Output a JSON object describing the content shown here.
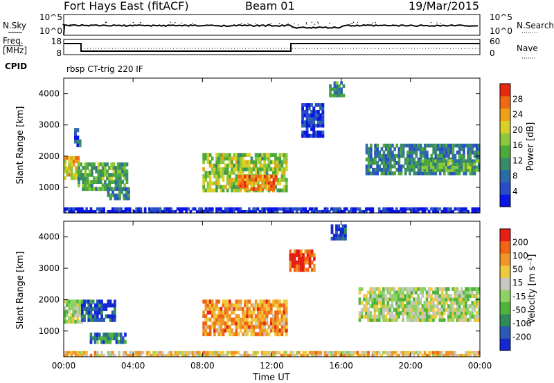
{
  "header": {
    "station": "Fort Hays East (fitACF)",
    "beam": "Beam 01",
    "date": "19/Mar/2015"
  },
  "top_panels": {
    "nsky_label": "N.Sky",
    "nsearch_label": "N.Search",
    "nsky_ticks": [
      "10^5",
      "10^0"
    ],
    "nsearch_ticks": [
      "10^5",
      "10^0"
    ],
    "freq_label_1": "Freq.",
    "freq_label_2": "[MHz]",
    "freq_ticks": [
      "18",
      "8"
    ],
    "nave_label": "Nave",
    "nave_ticks": [
      "60",
      "0"
    ],
    "cpid_label": "CPID",
    "cpid_text": "rbsp CT-trig 220 IF"
  },
  "chart_data": [
    {
      "type": "heatmap",
      "name": "power",
      "ylabel": "Slant Range [km]",
      "y_ticks": [
        "1000",
        "2000",
        "3000",
        "4000"
      ],
      "y_tick_values": [
        1000,
        2000,
        3000,
        4000
      ],
      "ylim": [
        180,
        4500
      ],
      "xlim_hours": [
        0,
        24
      ],
      "colorbar": {
        "label": "Power [dB]",
        "ticks": [
          "4",
          "8",
          "12",
          "16",
          "20",
          "24",
          "28"
        ],
        "range": [
          0,
          32
        ],
        "colors": [
          "#0a14e6",
          "#2a4cc8",
          "#2d6aa8",
          "#3a8a6a",
          "#4caa3a",
          "#8cc83c",
          "#d8d028",
          "#f0a018",
          "#f06a14",
          "#e62a10"
        ]
      },
      "regions": [
        {
          "t0": 0.0,
          "t1": 0.9,
          "r0": 1250,
          "r1": 2000,
          "level": 0.65
        },
        {
          "t0": 0.6,
          "t1": 1.0,
          "r0": 2300,
          "r1": 2900,
          "level": 0.2
        },
        {
          "t0": 0.8,
          "t1": 3.7,
          "r0": 900,
          "r1": 1800,
          "level": 0.45
        },
        {
          "t0": 2.5,
          "t1": 3.8,
          "r0": 600,
          "r1": 1000,
          "level": 0.3
        },
        {
          "t0": 8.0,
          "t1": 12.9,
          "r0": 850,
          "r1": 2100,
          "level": 0.55
        },
        {
          "t0": 10.0,
          "t1": 12.3,
          "r0": 900,
          "r1": 1400,
          "level": 0.85
        },
        {
          "t0": 13.7,
          "t1": 15.0,
          "r0": 2600,
          "r1": 3700,
          "level": 0.1
        },
        {
          "t0": 15.3,
          "t1": 16.2,
          "r0": 3900,
          "r1": 4400,
          "level": 0.35
        },
        {
          "t0": 17.4,
          "t1": 24.0,
          "r0": 1400,
          "r1": 2400,
          "level": 0.3
        },
        {
          "t0": 20.5,
          "t1": 24.0,
          "r0": 1500,
          "r1": 1900,
          "level": 0.45
        },
        {
          "t0": 0.0,
          "t1": 24.0,
          "r0": 180,
          "r1": 360,
          "level": 0.05
        }
      ]
    },
    {
      "type": "heatmap",
      "name": "velocity",
      "ylabel": "Slant Range [km]",
      "y_ticks": [
        "1000",
        "2000",
        "3000",
        "4000"
      ],
      "y_tick_values": [
        1000,
        2000,
        3000,
        4000
      ],
      "ylim": [
        180,
        4500
      ],
      "xlim_hours": [
        0,
        24
      ],
      "xlabel": "Time UT",
      "x_ticks": [
        "00:00",
        "04:00",
        "08:00",
        "12:00",
        "16:00",
        "20:00",
        "00:00"
      ],
      "colorbar": {
        "label": "Velocity [m s⁻¹]",
        "ticks": [
          "200",
          "100",
          "50",
          "15",
          "-15",
          "-50",
          "-100",
          "-200"
        ],
        "colors": [
          "#1428d2",
          "#2a5ab4",
          "#2d8c5a",
          "#50b43c",
          "#8cd264",
          "#c8c8c0",
          "#f0c83c",
          "#f09628",
          "#f06414",
          "#e61e14"
        ]
      },
      "regions": [
        {
          "t0": 0.0,
          "t1": 1.1,
          "r0": 1250,
          "r1": 2000,
          "level": 0.5
        },
        {
          "t0": 1.0,
          "t1": 3.0,
          "r0": 1300,
          "r1": 2000,
          "level": 0.15
        },
        {
          "t0": 1.5,
          "t1": 3.6,
          "r0": 600,
          "r1": 950,
          "level": 0.25
        },
        {
          "t0": 8.0,
          "t1": 12.9,
          "r0": 850,
          "r1": 2000,
          "level": 0.75
        },
        {
          "t0": 13.0,
          "t1": 14.5,
          "r0": 2900,
          "r1": 3600,
          "level": 0.9
        },
        {
          "t0": 15.4,
          "t1": 16.3,
          "r0": 3900,
          "r1": 4400,
          "level": 0.05
        },
        {
          "t0": 17.0,
          "t1": 24.0,
          "r0": 1300,
          "r1": 2400,
          "level": 0.5
        },
        {
          "t0": 0.0,
          "t1": 24.0,
          "r0": 180,
          "r1": 360,
          "level": 0.65
        }
      ]
    }
  ]
}
